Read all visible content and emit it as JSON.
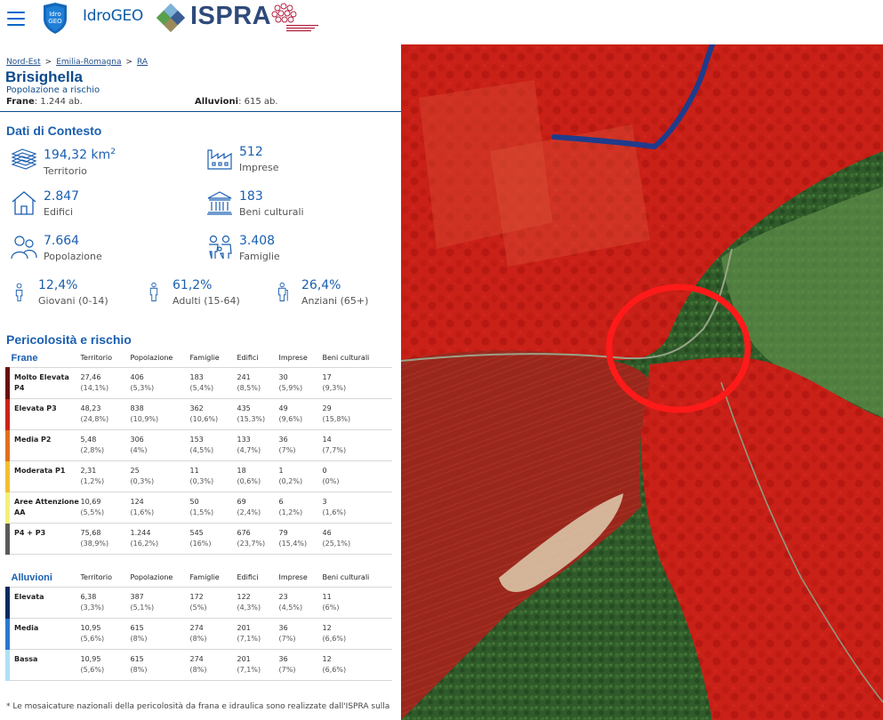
{
  "header": {
    "shield_top": "Idro",
    "shield_bottom": "GEO",
    "app_name": "IdroGEO",
    "org_name": "ISPRA"
  },
  "breadcrumb": [
    "Nord-Est",
    "Emilia-Romagna",
    "RA"
  ],
  "place": {
    "name": "Brisighella",
    "subtitle": "Popolazione a rischio",
    "frane_label": "Frane",
    "frane_value": ": 1.244 ab.",
    "alluvioni_label": "Alluvioni",
    "alluvioni_value": ": 615 ab."
  },
  "context": {
    "title": "Dati di Contesto",
    "territorio": {
      "value": "194,32 km",
      "sup": "2",
      "label": "Territorio",
      "icon": "territory-icon"
    },
    "imprese": {
      "value": "512",
      "label": "Imprese",
      "icon": "factory-icon"
    },
    "edifici": {
      "value": "2.847",
      "label": "Edifici",
      "icon": "house-icon"
    },
    "beni": {
      "value": "183",
      "label": "Beni culturali",
      "icon": "museum-icon"
    },
    "popolazione": {
      "value": "7.664",
      "label": "Popolazione",
      "icon": "people-icon"
    },
    "famiglie": {
      "value": "3.408",
      "label": "Famiglie",
      "icon": "family-icon"
    },
    "giovani": {
      "value": "12,4%",
      "label": "Giovani (0-14)",
      "icon": "child-icon"
    },
    "adulti": {
      "value": "61,2%",
      "label": "Adulti (15-64)",
      "icon": "adult-icon"
    },
    "anziani": {
      "value": "26,4%",
      "label": "Anziani (65+)",
      "icon": "elder-icon"
    }
  },
  "risk": {
    "title": "Pericolosità e rischio",
    "columns": [
      "Territorio",
      "Popolazione",
      "Famiglie",
      "Edifici",
      "Imprese",
      "Beni culturali"
    ],
    "frane": {
      "header": "Frane",
      "rows": [
        {
          "label": "Molto Elevata P4",
          "color": "#6b0f0f",
          "cells": [
            [
              "27,46",
              "(14,1%)"
            ],
            [
              "406",
              "(5,3%)"
            ],
            [
              "183",
              "(5,4%)"
            ],
            [
              "241",
              "(8,5%)"
            ],
            [
              "30",
              "(5,9%)"
            ],
            [
              "17",
              "(9,3%)"
            ]
          ]
        },
        {
          "label": "Elevata P3",
          "color": "#c8241a",
          "cells": [
            [
              "48,23",
              "(24,8%)"
            ],
            [
              "838",
              "(10,9%)"
            ],
            [
              "362",
              "(10,6%)"
            ],
            [
              "435",
              "(15,3%)"
            ],
            [
              "49",
              "(9,6%)"
            ],
            [
              "29",
              "(15,8%)"
            ]
          ]
        },
        {
          "label": "Media P2",
          "color": "#e07020",
          "cells": [
            [
              "5,48",
              "(2,8%)"
            ],
            [
              "306",
              "(4%)"
            ],
            [
              "153",
              "(4,5%)"
            ],
            [
              "133",
              "(4,7%)"
            ],
            [
              "36",
              "(7%)"
            ],
            [
              "14",
              "(7,7%)"
            ]
          ]
        },
        {
          "label": "Moderata P1",
          "color": "#f0c030",
          "cells": [
            [
              "2,31",
              "(1,2%)"
            ],
            [
              "25",
              "(0,3%)"
            ],
            [
              "11",
              "(0,3%)"
            ],
            [
              "18",
              "(0,6%)"
            ],
            [
              "1",
              "(0,2%)"
            ],
            [
              "0",
              "(0%)"
            ]
          ]
        },
        {
          "label": "Aree Attenzione AA",
          "color": "#f4f07a",
          "cells": [
            [
              "10,69",
              "(5,5%)"
            ],
            [
              "124",
              "(1,6%)"
            ],
            [
              "50",
              "(1,5%)"
            ],
            [
              "69",
              "(2,4%)"
            ],
            [
              "6",
              "(1,2%)"
            ],
            [
              "3",
              "(1,6%)"
            ]
          ]
        },
        {
          "label": "P4 + P3",
          "color": "#5a5a5a",
          "cells": [
            [
              "75,68",
              "(38,9%)"
            ],
            [
              "1.244",
              "(16,2%)"
            ],
            [
              "545",
              "(16%)"
            ],
            [
              "676",
              "(23,7%)"
            ],
            [
              "79",
              "(15,4%)"
            ],
            [
              "46",
              "(25,1%)"
            ]
          ]
        }
      ]
    },
    "alluvioni": {
      "header": "Alluvioni",
      "rows": [
        {
          "label": "Elevata",
          "color": "#0d2a5e",
          "cells": [
            [
              "6,38",
              "(3,3%)"
            ],
            [
              "387",
              "(5,1%)"
            ],
            [
              "172",
              "(5%)"
            ],
            [
              "122",
              "(4,3%)"
            ],
            [
              "23",
              "(4,5%)"
            ],
            [
              "11",
              "(6%)"
            ]
          ]
        },
        {
          "label": "Media",
          "color": "#2a78d0",
          "cells": [
            [
              "10,95",
              "(5,6%)"
            ],
            [
              "615",
              "(8%)"
            ],
            [
              "274",
              "(8%)"
            ],
            [
              "201",
              "(7,1%)"
            ],
            [
              "36",
              "(7%)"
            ],
            [
              "12",
              "(6,6%)"
            ]
          ]
        },
        {
          "label": "Bassa",
          "color": "#aee0f4",
          "cells": [
            [
              "10,95",
              "(5,6%)"
            ],
            [
              "615",
              "(8%)"
            ],
            [
              "274",
              "(8%)"
            ],
            [
              "201",
              "(7,1%)"
            ],
            [
              "36",
              "(7%)"
            ],
            [
              "12",
              "(6,6%)"
            ]
          ]
        }
      ]
    }
  },
  "footnote": "* Le mosaicature nazionali della pericolosità da frana e idraulica sono realizzate dall'ISPRA sulla",
  "colors": {
    "accent": "#1a5fb0",
    "hazard_red": "#d41e14",
    "river": "#1f3b8c",
    "marker": "#ff1a1a"
  }
}
